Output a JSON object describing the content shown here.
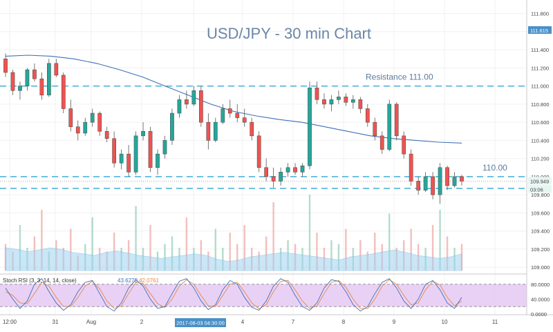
{
  "chart_data": [
    {
      "type": "candlestick",
      "title": "USD/JPY - 30 min Chart",
      "ylim": [
        108.94,
        111.95
      ],
      "y_ticks": [
        "111.800",
        "111.600",
        "111.400",
        "111.200",
        "111.000",
        "110.800",
        "110.600",
        "110.400",
        "110.200",
        "110.000",
        "109.800",
        "109.600",
        "109.400",
        "109.200",
        "109.000"
      ],
      "x_ticks": [
        "12:00",
        "31",
        "Aug",
        "2",
        "3",
        "4",
        "7",
        "8",
        "9",
        "10",
        "11"
      ],
      "price_tag": "111.615",
      "last_price_tag": "109.949",
      "countdown_tag": "03:06",
      "cursor_date_label": "2017-08-03 04:30:00",
      "levels": [
        {
          "label": "Resistance 111.00",
          "value": 111.0
        },
        {
          "label": "110.00",
          "value": 110.0
        },
        {
          "label": "",
          "value": 109.87
        }
      ],
      "up_color": "#26a69a",
      "down_color": "#ef5350",
      "level_color": "#4fb3d9",
      "ma_color": "#3d6fb6",
      "volume_area_color": "#9fd3f1",
      "ohlc": [
        [
          111.3,
          111.36,
          111.1,
          111.15
        ],
        [
          111.15,
          111.18,
          110.9,
          110.95
        ],
        [
          110.95,
          111.05,
          110.85,
          111.0
        ],
        [
          111.0,
          111.2,
          110.95,
          111.18
        ],
        [
          111.18,
          111.25,
          111.05,
          111.08
        ],
        [
          111.08,
          111.15,
          110.85,
          110.9
        ],
        [
          110.9,
          111.3,
          110.88,
          111.25
        ],
        [
          111.25,
          111.3,
          111.1,
          111.12
        ],
        [
          111.12,
          111.15,
          110.7,
          110.75
        ],
        [
          110.75,
          110.85,
          110.5,
          110.55
        ],
        [
          110.55,
          110.62,
          110.4,
          110.48
        ],
        [
          110.48,
          110.65,
          110.45,
          110.6
        ],
        [
          110.6,
          110.75,
          110.55,
          110.7
        ],
        [
          110.7,
          110.72,
          110.45,
          110.5
        ],
        [
          110.5,
          110.55,
          110.38,
          110.42
        ],
        [
          110.42,
          110.5,
          110.1,
          110.15
        ],
        [
          110.15,
          110.3,
          110.08,
          110.25
        ],
        [
          110.25,
          110.35,
          110.0,
          110.05
        ],
        [
          110.05,
          110.5,
          110.02,
          110.45
        ],
        [
          110.45,
          110.6,
          110.4,
          110.5
        ],
        [
          110.5,
          110.55,
          110.05,
          110.1
        ],
        [
          110.1,
          110.3,
          110.02,
          110.25
        ],
        [
          110.25,
          110.45,
          110.2,
          110.4
        ],
        [
          110.4,
          110.75,
          110.35,
          110.7
        ],
        [
          110.7,
          110.9,
          110.65,
          110.85
        ],
        [
          110.85,
          110.95,
          110.75,
          110.8
        ],
        [
          110.8,
          111.0,
          110.78,
          110.95
        ],
        [
          110.95,
          111.0,
          110.55,
          110.6
        ],
        [
          110.6,
          110.7,
          110.3,
          110.4
        ],
        [
          110.4,
          110.65,
          110.38,
          110.6
        ],
        [
          110.6,
          110.8,
          110.58,
          110.75
        ],
        [
          110.75,
          110.85,
          110.65,
          110.7
        ],
        [
          110.7,
          110.8,
          110.6,
          110.65
        ],
        [
          110.65,
          110.75,
          110.55,
          110.6
        ],
        [
          110.6,
          110.65,
          110.4,
          110.45
        ],
        [
          110.45,
          110.5,
          110.05,
          110.1
        ],
        [
          110.1,
          110.2,
          109.95,
          110.0
        ],
        [
          110.0,
          110.1,
          109.88,
          109.95
        ],
        [
          109.95,
          110.1,
          109.9,
          110.05
        ],
        [
          110.05,
          110.15,
          110.0,
          110.1
        ],
        [
          110.1,
          110.15,
          110.02,
          110.05
        ],
        [
          110.05,
          110.15,
          110.0,
          110.12
        ],
        [
          110.12,
          111.05,
          110.08,
          110.98
        ],
        [
          110.98,
          111.05,
          110.8,
          110.85
        ],
        [
          110.85,
          110.92,
          110.75,
          110.8
        ],
        [
          110.8,
          110.9,
          110.72,
          110.85
        ],
        [
          110.85,
          110.95,
          110.8,
          110.88
        ],
        [
          110.88,
          110.92,
          110.78,
          110.82
        ],
        [
          110.82,
          110.9,
          110.75,
          110.85
        ],
        [
          110.85,
          110.88,
          110.7,
          110.75
        ],
        [
          110.75,
          110.8,
          110.55,
          110.6
        ],
        [
          110.6,
          110.65,
          110.4,
          110.45
        ],
        [
          110.45,
          110.5,
          110.25,
          110.3
        ],
        [
          110.3,
          110.85,
          110.28,
          110.8
        ],
        [
          110.8,
          110.82,
          110.4,
          110.45
        ],
        [
          110.45,
          110.5,
          110.2,
          110.25
        ],
        [
          110.25,
          110.3,
          109.9,
          109.95
        ],
        [
          109.95,
          110.0,
          109.8,
          109.85
        ],
        [
          109.85,
          110.05,
          109.83,
          110.0
        ],
        [
          110.0,
          110.05,
          109.75,
          109.8
        ],
        [
          109.8,
          110.15,
          109.7,
          110.1
        ],
        [
          110.1,
          110.12,
          109.85,
          109.9
        ],
        [
          109.9,
          110.05,
          109.88,
          110.0
        ],
        [
          110.0,
          110.02,
          109.9,
          109.95
        ]
      ],
      "ma": [
        111.33,
        111.34,
        111.33,
        111.3,
        111.25,
        111.18,
        111.1,
        111.0,
        110.9,
        110.8,
        110.72,
        110.67,
        110.63,
        110.6,
        110.55,
        110.5,
        110.45,
        110.42,
        110.4,
        110.38,
        110.37
      ],
      "volume": [
        0.35,
        0.25,
        0.6,
        0.3,
        0.45,
        0.8,
        0.25,
        0.4,
        0.3,
        0.55,
        0.2,
        0.35,
        0.7,
        0.3,
        0.25,
        0.5,
        0.3,
        0.4,
        0.85,
        0.3,
        0.6,
        0.25,
        0.35,
        0.45,
        0.3,
        0.7,
        0.3,
        0.4,
        0.25,
        0.55,
        0.3,
        0.5,
        0.35,
        0.6,
        0.3,
        0.25,
        0.45,
        0.9,
        0.3,
        0.4,
        0.35,
        0.3,
        1.0,
        0.5,
        0.3,
        0.4,
        0.35,
        0.55,
        0.3,
        0.4,
        0.25,
        0.5,
        0.35,
        0.75,
        0.3,
        0.4,
        0.55,
        0.35,
        0.3,
        0.6,
        0.8,
        0.45,
        0.3,
        0.35
      ],
      "volume_ma": [
        0.3,
        0.28,
        0.25,
        0.27,
        0.3,
        0.28,
        0.24,
        0.22,
        0.2,
        0.24,
        0.26,
        0.23,
        0.2,
        0.18,
        0.16,
        0.18,
        0.2,
        0.22,
        0.2,
        0.15,
        0.12,
        0.14,
        0.18,
        0.2,
        0.22,
        0.24,
        0.22,
        0.2,
        0.18,
        0.16,
        0.14,
        0.18,
        0.2,
        0.22,
        0.25,
        0.27,
        0.24,
        0.2,
        0.18,
        0.16,
        0.18,
        0.22
      ]
    },
    {
      "type": "line",
      "title": "Stoch RSI (3, 3, 14, 14, close)",
      "values_label": [
        "43.6270",
        "42.0761"
      ],
      "ylim": [
        0,
        100
      ],
      "y_ticks": [
        "80.0000",
        "40.0000",
        "0.0000"
      ],
      "band": [
        20,
        80
      ],
      "k_color": "#3d6fb6",
      "d_color": "#e8883a",
      "band_color": "#e4c6f4",
      "k": [
        70,
        40,
        15,
        35,
        80,
        95,
        60,
        30,
        10,
        25,
        60,
        85,
        90,
        55,
        20,
        8,
        30,
        70,
        92,
        75,
        40,
        15,
        20,
        55,
        88,
        95,
        70,
        35,
        12,
        25,
        65,
        90,
        80,
        45,
        18,
        10,
        35,
        75,
        95,
        85,
        50,
        20,
        10,
        30,
        70,
        92,
        88,
        60,
        25,
        8,
        20,
        55,
        85,
        95,
        70,
        35,
        15,
        40,
        80,
        90,
        65,
        30,
        15,
        45
      ],
      "d": [
        60,
        50,
        30,
        28,
        55,
        85,
        75,
        45,
        20,
        20,
        45,
        75,
        88,
        68,
        35,
        15,
        22,
        55,
        85,
        82,
        55,
        28,
        18,
        40,
        75,
        92,
        80,
        50,
        22,
        20,
        50,
        80,
        85,
        60,
        30,
        14,
        25,
        60,
        88,
        90,
        65,
        35,
        15,
        22,
        55,
        85,
        90,
        72,
        40,
        15,
        15,
        40,
        75,
        92,
        80,
        50,
        25,
        30,
        65,
        88,
        78,
        45,
        22,
        35
      ]
    }
  ]
}
